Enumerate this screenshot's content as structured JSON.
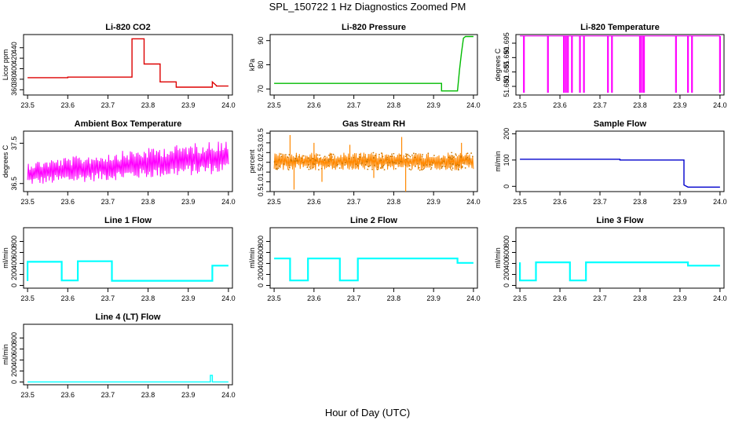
{
  "figure": {
    "title": "SPL_150722  1 Hz Diagnostics Zoomed PM",
    "xlabel": "Hour of Day (UTC)"
  },
  "chart_data": [
    {
      "type": "line",
      "title": "Li-820 CO2",
      "ylabel": "Licor ppm",
      "xlim": [
        23.49,
        24.01
      ],
      "ylim": [
        350,
        465
      ],
      "xticks": [
        "23.5",
        "23.6",
        "23.7",
        "23.8",
        "23.9",
        "24.0"
      ],
      "yticks": [
        360,
        380,
        400,
        420,
        440
      ],
      "color": "#dd0000",
      "series": [
        {
          "x": [
            23.5,
            23.6,
            23.6,
            23.76,
            23.76,
            23.79,
            23.79,
            23.83,
            23.83,
            23.87,
            23.87,
            23.96,
            23.96,
            23.97,
            23.97,
            24.0
          ],
          "y": [
            383,
            383,
            384,
            384,
            457,
            457,
            409,
            409,
            375,
            375,
            365,
            365,
            375,
            368,
            367,
            367
          ]
        }
      ]
    },
    {
      "type": "line",
      "title": "Li-820 Pressure",
      "ylabel": "kPa",
      "xlim": [
        23.49,
        24.01
      ],
      "ylim": [
        67.5,
        92.5
      ],
      "xticks": [
        "23.5",
        "23.6",
        "23.7",
        "23.8",
        "23.9",
        "24.0"
      ],
      "yticks": [
        70,
        80,
        90
      ],
      "color": "#00bb00",
      "series": [
        {
          "x": [
            23.5,
            23.92,
            23.92,
            23.96,
            23.965,
            23.97,
            23.975,
            23.98,
            24.0
          ],
          "y": [
            72.3,
            72.3,
            69.2,
            69.2,
            78,
            85,
            91,
            91.7,
            91.7
          ]
        }
      ]
    },
    {
      "type": "line",
      "title": "Li-820 Temperature",
      "ylabel": "degrees C",
      "xlim": [
        23.49,
        24.01
      ],
      "ylim": [
        51.677,
        51.698
      ],
      "xticks": [
        "23.5",
        "23.6",
        "23.7",
        "23.8",
        "23.9",
        "24.0"
      ],
      "yticks": [
        "51.680",
        "51.685",
        "51.690",
        "51.695"
      ],
      "color": "#ff00ff",
      "series": [
        {
          "baseline": 51.6975,
          "low": 51.6778,
          "dips_x": [
            23.51,
            23.57,
            23.61,
            23.615,
            23.62,
            23.63,
            23.65,
            23.66,
            23.72,
            23.73,
            23.8,
            23.805,
            23.81,
            23.89,
            23.92,
            23.93,
            24.0
          ]
        }
      ]
    },
    {
      "type": "line",
      "title": "Ambient Box Temperature",
      "ylabel": "degrees C",
      "xlim": [
        23.49,
        24.01
      ],
      "ylim": [
        36.3,
        37.8
      ],
      "xticks": [
        "23.5",
        "23.6",
        "23.7",
        "23.8",
        "23.9",
        "24.0"
      ],
      "yticks": [
        "36.5",
        "37.5"
      ],
      "color": "#ff00ff",
      "series": [
        {
          "x": [
            23.5,
            24.0
          ],
          "band_low": [
            36.45,
            36.75
          ],
          "band_high": [
            37.05,
            37.6
          ]
        }
      ]
    },
    {
      "type": "scatter",
      "title": "Gas Stream RH",
      "ylabel": "percent",
      "xlim": [
        23.49,
        24.01
      ],
      "ylim": [
        0.5,
        3.6
      ],
      "xticks": [
        "23.5",
        "23.6",
        "23.7",
        "23.8",
        "23.9",
        "24.0"
      ],
      "yticks": [
        "0.5",
        "1.0",
        "1.5",
        "2.0",
        "2.5",
        "3.0",
        "3.5"
      ],
      "color": "#ff8800",
      "series": [
        {
          "x": [
            23.5,
            24.0
          ],
          "band_low": [
            1.6,
            1.6
          ],
          "band_high": [
            2.5,
            2.5
          ],
          "spikes": [
            [
              23.54,
              3.4
            ],
            [
              23.55,
              0.6
            ],
            [
              23.6,
              3.0
            ],
            [
              23.62,
              1.0
            ],
            [
              23.69,
              2.9
            ],
            [
              23.75,
              1.2
            ],
            [
              23.82,
              3.3
            ],
            [
              23.83,
              0.5
            ],
            [
              23.97,
              3.0
            ]
          ]
        }
      ]
    },
    {
      "type": "line",
      "title": "Sample Flow",
      "ylabel": "ml/min",
      "xlim": [
        23.49,
        24.01
      ],
      "ylim": [
        -20,
        210
      ],
      "xticks": [
        "23.5",
        "23.6",
        "23.7",
        "23.8",
        "23.9",
        "24.0"
      ],
      "yticks": [
        0,
        100,
        200
      ],
      "color": "#0000cc",
      "series": [
        {
          "x": [
            23.5,
            23.75,
            23.75,
            23.91,
            23.91,
            23.92,
            24.0
          ],
          "y": [
            103,
            103,
            100,
            100,
            5,
            -3,
            -3
          ]
        }
      ]
    },
    {
      "type": "line",
      "title": "Line 1 Flow",
      "ylabel": "ml/min",
      "xlim": [
        23.49,
        24.01
      ],
      "ylim": [
        -50,
        1050
      ],
      "xticks": [
        "23.5",
        "23.6",
        "23.7",
        "23.8",
        "23.9",
        "24.0"
      ],
      "yticks": [
        0,
        200,
        400,
        600,
        800
      ],
      "color": "#00ffff",
      "series": [
        {
          "x": [
            23.5,
            23.5,
            23.585,
            23.585,
            23.625,
            23.625,
            23.71,
            23.71,
            23.96,
            23.96,
            24.0
          ],
          "y": [
            80,
            430,
            430,
            90,
            90,
            440,
            440,
            85,
            85,
            360,
            360
          ]
        }
      ]
    },
    {
      "type": "line",
      "title": "Line 2 Flow",
      "ylabel": "ml/min",
      "xlim": [
        23.49,
        24.01
      ],
      "ylim": [
        -50,
        1050
      ],
      "xticks": [
        "23.5",
        "23.6",
        "23.7",
        "23.8",
        "23.9",
        "24.0"
      ],
      "yticks": [
        0,
        200,
        400,
        600,
        800
      ],
      "color": "#00ffff",
      "series": [
        {
          "x": [
            23.5,
            23.54,
            23.54,
            23.585,
            23.585,
            23.665,
            23.665,
            23.71,
            23.71,
            23.96,
            23.96,
            24.0
          ],
          "y": [
            490,
            490,
            90,
            90,
            490,
            490,
            90,
            90,
            490,
            490,
            410,
            410
          ]
        }
      ]
    },
    {
      "type": "line",
      "title": "Line 3 Flow",
      "ylabel": "ml/min",
      "xlim": [
        23.49,
        24.01
      ],
      "ylim": [
        -50,
        1050
      ],
      "xticks": [
        "23.5",
        "23.6",
        "23.7",
        "23.8",
        "23.9",
        "24.0"
      ],
      "yticks": [
        0,
        200,
        400,
        600,
        800
      ],
      "color": "#00ffff",
      "series": [
        {
          "x": [
            23.5,
            23.5,
            23.54,
            23.54,
            23.625,
            23.625,
            23.665,
            23.665,
            23.92,
            23.92,
            24.0
          ],
          "y": [
            420,
            90,
            90,
            420,
            420,
            90,
            90,
            420,
            420,
            360,
            360
          ]
        }
      ]
    },
    {
      "type": "line",
      "title": "Line 4 (LT) Flow",
      "ylabel": "ml/min",
      "xlim": [
        23.49,
        24.01
      ],
      "ylim": [
        -50,
        1050
      ],
      "xticks": [
        "23.5",
        "23.6",
        "23.7",
        "23.8",
        "23.9",
        "24.0"
      ],
      "yticks": [
        0,
        200,
        400,
        600,
        800
      ],
      "color": "#00ffff",
      "series": [
        {
          "x": [
            23.5,
            23.955,
            23.955,
            23.96,
            23.96,
            24.0
          ],
          "y": [
            2,
            2,
            120,
            120,
            2,
            2
          ]
        }
      ]
    }
  ]
}
